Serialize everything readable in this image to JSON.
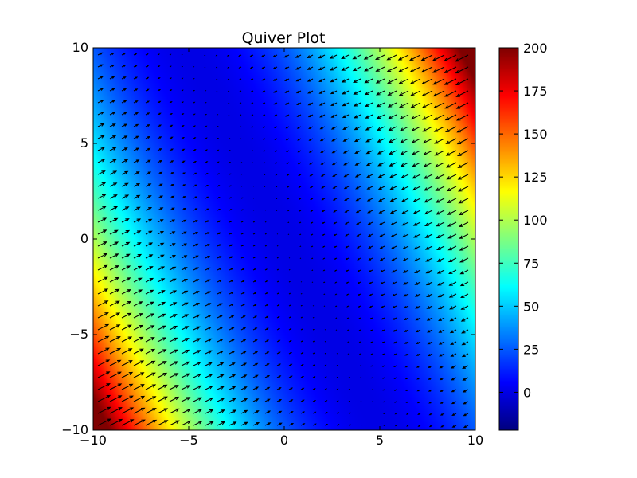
{
  "chart_data": {
    "type": "heatmap",
    "subtype": "quiver",
    "title": "Quiver Plot",
    "xlabel": "",
    "ylabel": "",
    "xlim": [
      -10,
      10
    ],
    "ylim": [
      -10,
      10
    ],
    "x_ticks": [
      -10,
      -5,
      0,
      5,
      10
    ],
    "y_ticks": [
      -10,
      -5,
      0,
      5,
      10
    ],
    "x_tick_labels": [
      "−10",
      "−5",
      "0",
      "5",
      "10"
    ],
    "y_tick_labels": [
      "−10",
      "−5",
      "0",
      "5",
      "10"
    ],
    "colormap": "jet",
    "colorbar": {
      "min": -22,
      "max": 200,
      "ticks": [
        0,
        25,
        50,
        75,
        100,
        125,
        150,
        175,
        200
      ],
      "tick_labels": [
        "0",
        "25",
        "50",
        "75",
        "100",
        "125",
        "150",
        "175",
        "200"
      ]
    },
    "scalar_field": "(x + 0.5*y)^2",
    "vector_field": {
      "u": "-(x + 0.5*y)",
      "v": "-0.5*(x + 0.5*y)"
    },
    "grid": false,
    "legend": "none"
  }
}
